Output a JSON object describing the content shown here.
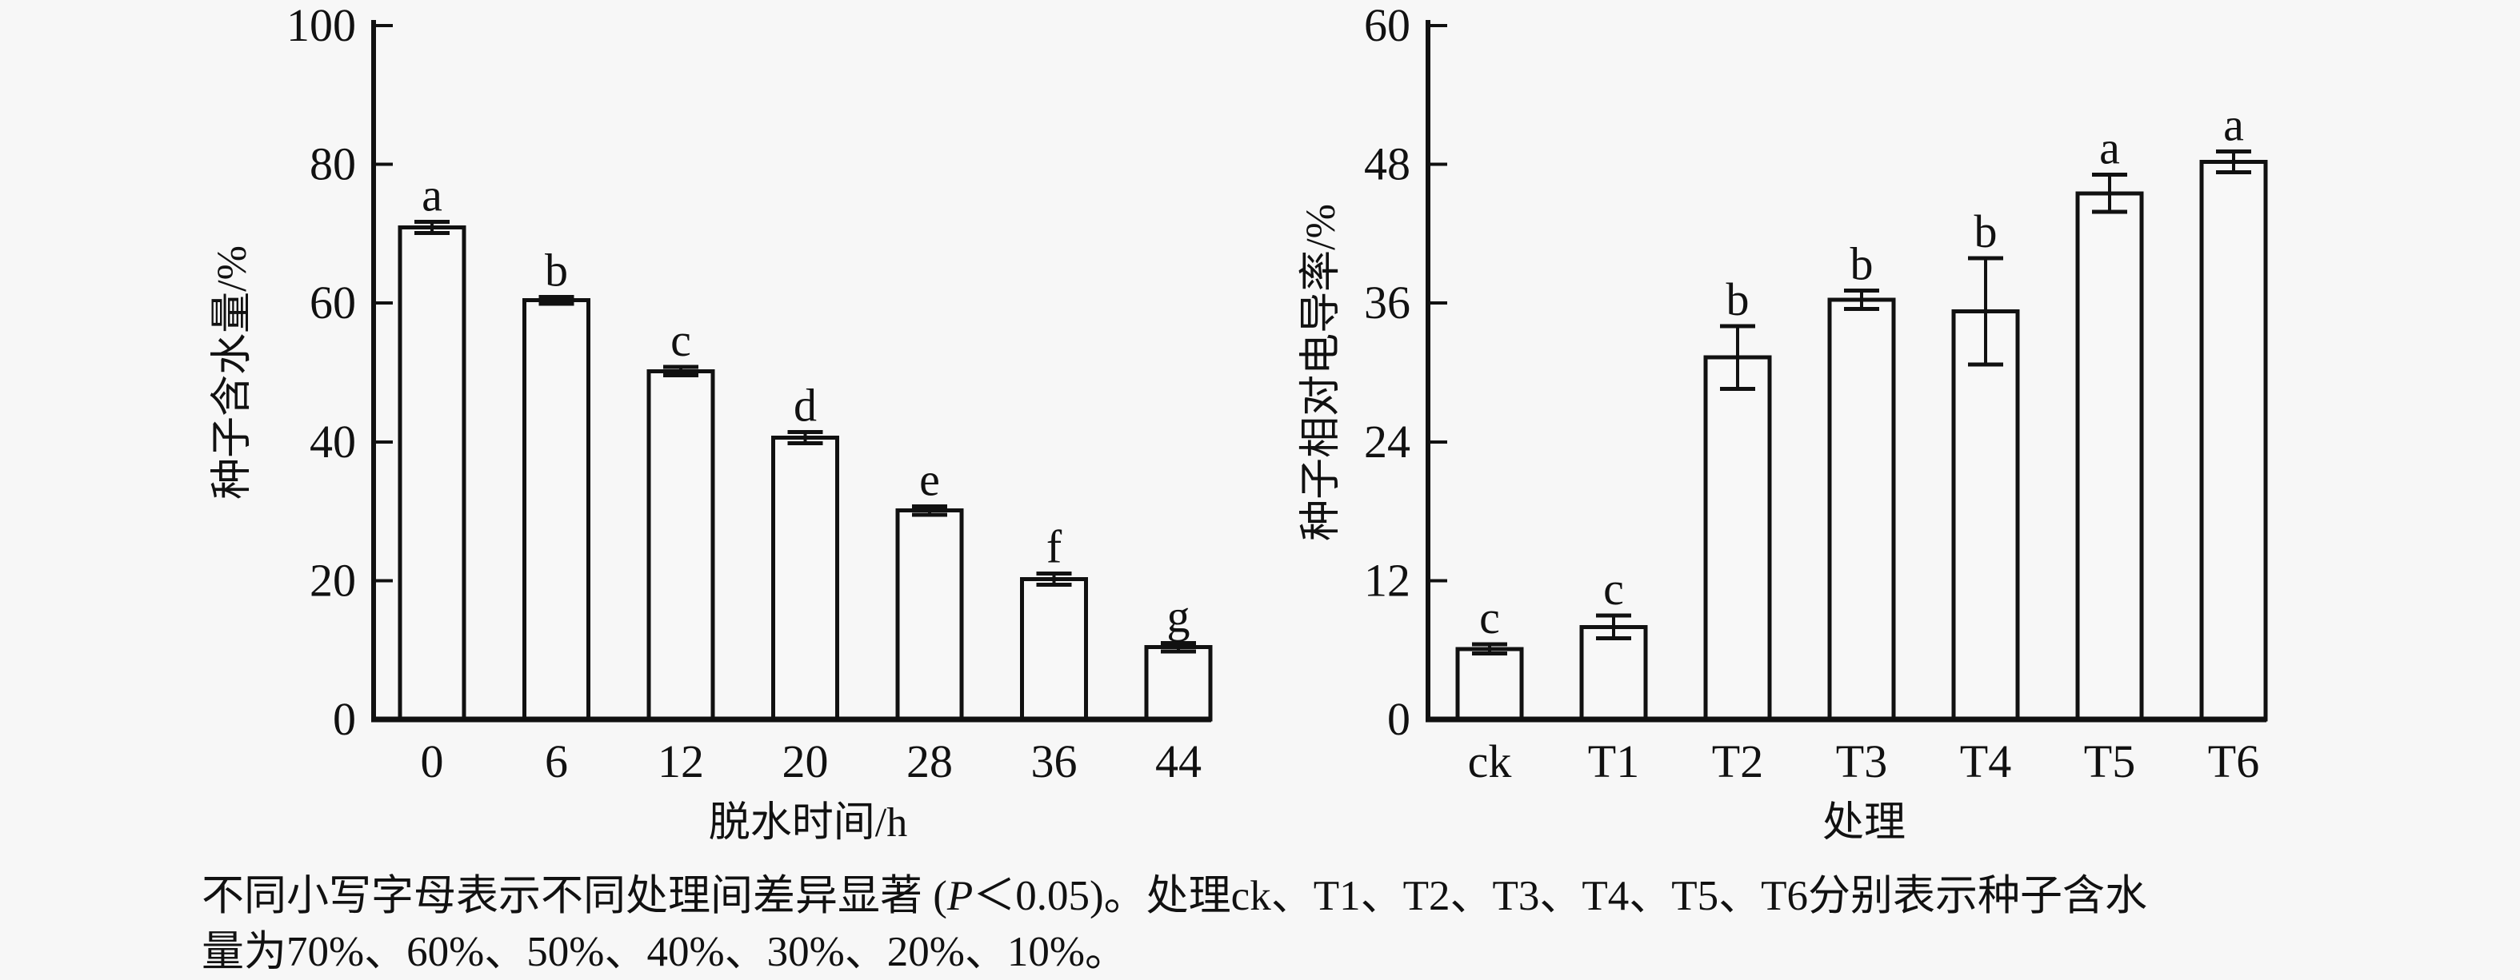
{
  "figure": {
    "background": "#f7f7f7",
    "line_color": "#111111",
    "bar_fill": "#f8f8f8",
    "text_color": "#111111"
  },
  "chart_data": [
    {
      "id": "seed-water-content",
      "type": "bar",
      "title": "",
      "categories": [
        "0",
        "6",
        "12",
        "20",
        "28",
        "36",
        "44"
      ],
      "values": [
        70.9,
        60.4,
        50.2,
        40.6,
        30.1,
        20.2,
        10.4
      ],
      "errors": [
        0.8,
        0.5,
        0.6,
        0.8,
        0.6,
        0.8,
        0.6
      ],
      "sig_letters": [
        "a",
        "b",
        "c",
        "d",
        "e",
        "f",
        "g"
      ],
      "xlabel": "脱水时间/h",
      "ylabel": "种子含水量/%",
      "ylim": [
        0,
        100
      ],
      "yticks": [
        0,
        20,
        40,
        60,
        80,
        100
      ],
      "grid": false,
      "legend": "none"
    },
    {
      "id": "seed-relative-conductivity",
      "type": "bar",
      "title": "",
      "categories": [
        "ck",
        "T1",
        "T2",
        "T3",
        "T4",
        "T5",
        "T6"
      ],
      "values": [
        6.1,
        8.0,
        31.3,
        36.3,
        35.3,
        45.5,
        48.2
      ],
      "errors": [
        0.4,
        1.0,
        2.7,
        0.8,
        4.6,
        1.6,
        0.9
      ],
      "sig_letters": [
        "c",
        "c",
        "b",
        "b",
        "b",
        "a",
        "a"
      ],
      "xlabel": "处理",
      "ylabel": "种子相对电导率/%",
      "ylim": [
        0,
        60
      ],
      "yticks": [
        0,
        12,
        24,
        36,
        48,
        60
      ],
      "grid": false,
      "legend": "none"
    }
  ],
  "caption": {
    "line1_pre": "不同小写字母表示不同处理间差异显著 (",
    "p_italic": "P",
    "line1_post": "＜0.05)。处理ck、T1、T2、T3、T4、T5、T6分别表示种子含水",
    "line2": "量为70%、60%、50%、40%、30%、20%、10%。"
  }
}
